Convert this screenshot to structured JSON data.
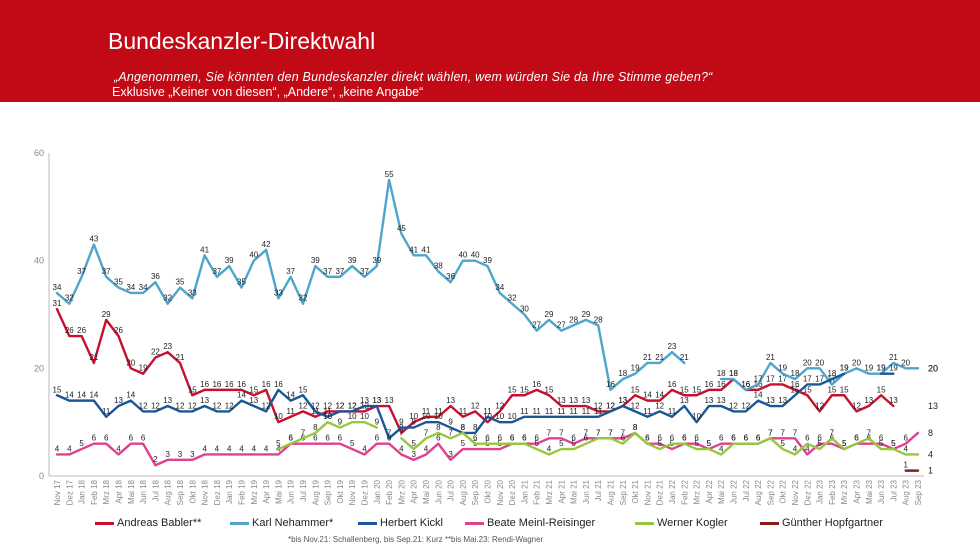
{
  "header": {
    "title": "Bundeskanzler-Direktwahl",
    "question": "„Angenommen, Sie könnten den Bundeskanzler direkt wählen, wem würden Sie da Ihre Stimme geben?“",
    "exclusion": "Exklusive „Keiner von diesen“, „Andere“, „keine Angabe“"
  },
  "footnote": "*bis Nov.21: Schallenberg, bis Sep.21: Kurz **bis Mai.23: Rendi-Wagner",
  "chart_data": {
    "type": "line",
    "ylim": [
      0,
      60
    ],
    "yticks": [
      0,
      20,
      40,
      60
    ],
    "grid": false,
    "legend": "bottom",
    "categories": [
      "Nov 17",
      "Dez 17",
      "Jan 18",
      "Feb 18",
      "Mrz 18",
      "Apr 18",
      "Mai 18",
      "Jun 18",
      "Jul 18",
      "Aug 18",
      "Sep 18",
      "Okt 18",
      "Nov 18",
      "Dez 18",
      "Jan 19",
      "Feb 19",
      "Mrz 19",
      "Apr 19",
      "Mai 19",
      "Jun 19",
      "Jul 19",
      "Aug 19",
      "Sep 19",
      "Okt 19",
      "Nov 19",
      "Dez 19",
      "Jan 20",
      "Feb 20",
      "Mrz 20",
      "Apr 20",
      "Mai 20",
      "Jun 20",
      "Jul 20",
      "Aug 20",
      "Sep 20",
      "Okt 20",
      "Nov 20",
      "Dez 20",
      "Jan 21",
      "Feb 21",
      "Mrz 21",
      "Apr 21",
      "Mai 21",
      "Jun 21",
      "Jul 21",
      "Aug 21",
      "Sep 21",
      "Okt 21",
      "Nov 21",
      "Dez 21",
      "Jan 22",
      "Feb 22",
      "Mrz 22",
      "Apr 22",
      "Mai 22",
      "Jun 22",
      "Jul 22",
      "Aug 22",
      "Sep 22",
      "Okt 22",
      "Nov 22",
      "Dez 22",
      "Jan 23",
      "Feb 23",
      "Mrz 23",
      "Apr 23",
      "Mai 23",
      "Jun 23",
      "Jul 23",
      "Aug 23",
      "Sep 23"
    ],
    "xtick_labels": [
      "Nov 17",
      "Dez 17",
      "Jan 18",
      "Feb 18",
      "Mrz 18",
      "Apr 18",
      "Mai 18",
      "Jun 18",
      "Jul 18",
      "Aug 18",
      "Sep 18",
      "Okt 18",
      "Nov 18",
      "Dez 18",
      "Jan 19",
      "Feb 19",
      "Mrz 19",
      "Apr 19",
      "Mai 19",
      "Jun 19",
      "Jul 19",
      "Aug 19",
      "Sep 19",
      "Okt 19",
      "Nov 19",
      "Dez 19",
      "Jan 20",
      "Feb 20",
      "Mrz 20",
      "Apr 20",
      "Mai 20",
      "Jun 20",
      "Jul 20",
      "Aug 20",
      "Sep 20",
      "Okt 20",
      "Nov 20",
      "Dez 20",
      "Jan 21",
      "Feb 21",
      "Mrz 21",
      "Apr 21",
      "Mai 21",
      "Jun 21",
      "Jul 21",
      "Aug 21",
      "Sep 21",
      "Okt 21",
      "Nov 21",
      "Dez 21",
      "Jan 22",
      "Feb 22",
      "Mrz 22",
      "Apr 22",
      "Mai 22",
      "Jun 22",
      "Jul 22",
      "Aug 22",
      "Sep 22",
      "Okt 22",
      "Nov 22",
      "Dez 22",
      "Jan 23",
      "Feb 23",
      "Mrz 23",
      "Apr 23",
      "Mai 23",
      "Jun 23",
      "Jul 23",
      "Aug 23",
      "Sep 23"
    ],
    "series": [
      {
        "name": "Andreas Babler**",
        "color": "#c8102e",
        "values": [
          31,
          26,
          26,
          21,
          29,
          26,
          20,
          19,
          22,
          23,
          21,
          15,
          16,
          16,
          16,
          16,
          15,
          16,
          10,
          11,
          12,
          11,
          12,
          12,
          12,
          12,
          13,
          13,
          8,
          10,
          11,
          11,
          13,
          11,
          12,
          10,
          12,
          15,
          15,
          16,
          15,
          13,
          13,
          13,
          12,
          12,
          13,
          15,
          14,
          14,
          16,
          15,
          15,
          16,
          16,
          18,
          16,
          16,
          17,
          17,
          16,
          15,
          12,
          15,
          15,
          12,
          13,
          15,
          13,
          null,
          13
        ]
      },
      {
        "name": "Karl Nehammer*",
        "color": "#4ea5cc",
        "values": [
          34,
          32,
          37,
          43,
          37,
          35,
          34,
          34,
          36,
          32,
          35,
          33,
          41,
          37,
          39,
          35,
          40,
          42,
          33,
          37,
          32,
          39,
          37,
          37,
          39,
          37,
          39,
          55,
          45,
          41,
          41,
          38,
          36,
          40,
          40,
          39,
          34,
          32,
          30,
          27,
          29,
          27,
          28,
          29,
          28,
          16,
          18,
          19,
          21,
          21,
          23,
          21,
          null,
          null,
          18,
          18,
          16,
          17,
          21,
          19,
          18,
          20,
          20,
          17,
          19,
          20,
          19,
          19,
          21,
          20,
          20
        ]
      },
      {
        "name": "Herbert Kickl",
        "color": "#1a5796",
        "values": [
          15,
          14,
          14,
          14,
          11,
          13,
          14,
          12,
          12,
          13,
          12,
          12,
          13,
          12,
          12,
          14,
          13,
          12,
          16,
          14,
          15,
          12,
          11,
          12,
          12,
          13,
          13,
          7,
          9,
          9,
          10,
          10,
          9,
          8,
          8,
          11,
          10,
          10,
          11,
          11,
          11,
          11,
          11,
          11,
          11,
          12,
          13,
          12,
          11,
          12,
          11,
          13,
          10,
          13,
          13,
          12,
          12,
          14,
          13,
          13,
          15,
          17,
          17,
          18,
          19,
          null,
          null,
          19,
          19,
          null,
          20
        ]
      },
      {
        "name": "Beate Meinl-Reisinger",
        "color": "#e0408f",
        "values": [
          4,
          4,
          5,
          6,
          6,
          4,
          6,
          6,
          2,
          3,
          3,
          3,
          4,
          4,
          4,
          4,
          4,
          4,
          4,
          6,
          6,
          6,
          6,
          6,
          5,
          4,
          6,
          6,
          4,
          3,
          4,
          6,
          3,
          5,
          5,
          5,
          5,
          6,
          6,
          6,
          7,
          7,
          6,
          7,
          7,
          7,
          7,
          8,
          6,
          6,
          5,
          6,
          6,
          5,
          6,
          6,
          6,
          6,
          7,
          7,
          7,
          4,
          6,
          6,
          5,
          6,
          6,
          6,
          5,
          6,
          8
        ]
      },
      {
        "name": "Werner Kogler",
        "color": "#94c93d",
        "values": [
          null,
          null,
          null,
          null,
          null,
          null,
          null,
          null,
          null,
          null,
          null,
          null,
          null,
          null,
          null,
          null,
          null,
          null,
          5,
          6,
          7,
          8,
          10,
          9,
          10,
          10,
          9,
          null,
          7,
          5,
          7,
          8,
          7,
          8,
          6,
          6,
          6,
          6,
          6,
          5,
          4,
          5,
          5,
          6,
          7,
          7,
          6,
          8,
          6,
          5,
          6,
          6,
          5,
          5,
          4,
          6,
          6,
          6,
          7,
          5,
          4,
          6,
          5,
          7,
          5,
          6,
          7,
          5,
          5,
          4,
          4
        ]
      },
      {
        "name": "Günther Hopfgartner",
        "color": "#8a1c1c",
        "values": [
          null,
          null,
          null,
          null,
          null,
          null,
          null,
          null,
          null,
          null,
          null,
          null,
          null,
          null,
          null,
          null,
          null,
          null,
          null,
          null,
          null,
          null,
          null,
          null,
          null,
          null,
          null,
          null,
          null,
          null,
          null,
          null,
          null,
          null,
          null,
          null,
          null,
          null,
          null,
          null,
          null,
          null,
          null,
          null,
          null,
          null,
          null,
          null,
          null,
          null,
          null,
          null,
          null,
          null,
          null,
          null,
          null,
          null,
          null,
          null,
          null,
          null,
          null,
          null,
          null,
          null,
          null,
          null,
          null,
          1,
          1
        ]
      }
    ]
  }
}
